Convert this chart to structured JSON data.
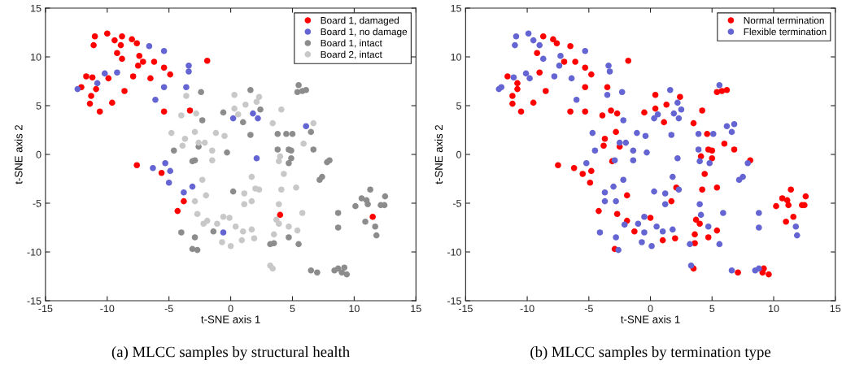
{
  "chart_data": [
    {
      "type": "scatter",
      "title": "(a) MLCC samples by structural health",
      "xlabel": "t-SNE axis 1",
      "ylabel": "t-SNE axis 2",
      "xlim": [
        -15,
        15
      ],
      "ylim": [
        -15,
        15
      ],
      "xticks": [
        -15,
        -10,
        -5,
        0,
        5,
        10,
        15
      ],
      "yticks": [
        -15,
        -10,
        -5,
        0,
        5,
        10,
        15
      ],
      "grid": false,
      "legend": "top right",
      "marker": "circle",
      "series": [
        {
          "name": "Board 1, damaged",
          "color": "#ff0000",
          "x": [
            -11.0,
            -10.0,
            -11.1,
            -9.4,
            -8.8,
            -8.9,
            -8.0,
            -7.6,
            -9.2,
            -8.8,
            -7.4,
            -7.1,
            -6.2,
            -7.5,
            -5.4,
            -4.9,
            -1.9,
            -11.7,
            -11.2,
            -9.9,
            -7.9,
            -6.5,
            -12.1,
            -10.9,
            -8.6,
            -11.3,
            -11.4,
            -9.6,
            -10.6,
            -5.4,
            -3.3,
            -7.6,
            -5.6,
            -3.8,
            -4.3,
            4.0,
            11.5
          ],
          "values": [
            12.1,
            12.4,
            11.2,
            11.7,
            12.1,
            11.2,
            11.8,
            11.4,
            10.4,
            9.8,
            10.1,
            9.5,
            9.5,
            9.1,
            8.9,
            8.2,
            9.6,
            8.0,
            7.9,
            7.8,
            8.0,
            7.8,
            6.9,
            6.7,
            6.5,
            6.0,
            5.2,
            5.3,
            4.4,
            4.4,
            4.5,
            -1.1,
            -1.9,
            -4.8,
            -5.8,
            -6.2,
            -6.4
          ]
        },
        {
          "name": "Board 1, no damage",
          "color": "#6464d2",
          "x": [
            -6.6,
            -5.4,
            -3.4,
            -3.4,
            -10.2,
            -9.2,
            -10.8,
            -12.4,
            -5.4,
            -3.6,
            -6.1,
            0.2,
            -6.3,
            -5.3,
            -4.9,
            -5.0,
            -3.1,
            -3.8,
            -0.6,
            1.8,
            2.2,
            6.1,
            2.1
          ],
          "values": [
            11.1,
            10.6,
            9.1,
            8.5,
            8.3,
            8.4,
            7.3,
            6.7,
            6.9,
            6.9,
            5.6,
            3.7,
            -1.4,
            -0.9,
            -1.7,
            -2.9,
            -3.3,
            -3.9,
            -8.0,
            4.2,
            3.7,
            2.9,
            -0.4
          ]
        },
        {
          "name": "Board 1, intact",
          "color": "#8c8c8c",
          "x": [
            -2.4,
            -0.6,
            -2.3,
            -4.6,
            -2.6,
            -0.3,
            -3.1,
            -2.9,
            0.2,
            -4.0,
            -2.9,
            -3.1,
            -2.7,
            -1.4,
            1.6,
            2.4,
            1.0,
            1.6,
            5.5,
            5.4,
            5.8,
            6.1,
            6.5,
            3.8,
            4.5,
            5.0,
            3.8,
            4.7,
            4.9,
            6.7,
            4.9,
            4.7,
            7.8,
            8.0,
            7.2,
            7.4,
            11.3,
            10.6,
            11.0,
            11.1,
            12.5,
            10.1,
            12.15,
            12.45,
            8.7,
            8.7,
            10.9,
            11.7,
            11.8,
            4.7,
            3.2,
            3.5,
            5.5,
            6.5,
            7.0,
            8.4,
            8.7,
            9.2,
            9.0,
            9.4
          ],
          "values": [
            6.4,
            4.3,
            3.5,
            0.4,
            0.8,
            0.2,
            -0.7,
            -0.6,
            -3.8,
            -8.0,
            -8.5,
            -9.7,
            -9.8,
            -7.9,
            6.6,
            4.6,
            3.3,
            2.0,
            7.1,
            6.4,
            6.5,
            6.6,
            2.3,
            2.1,
            2.1,
            2.1,
            0.5,
            0.5,
            0.4,
            0.5,
            -0.4,
            -0.9,
            -0.8,
            -0.6,
            -2.6,
            -2.3,
            -3.6,
            -4.5,
            -4.7,
            -5.1,
            -4.3,
            -5.3,
            -5.2,
            -5.2,
            -6.0,
            -7.5,
            -6.9,
            -7.4,
            -8.3,
            -8.5,
            -9.2,
            -9.1,
            -9.2,
            -11.9,
            -12.1,
            -11.9,
            -11.7,
            -11.6,
            -12.1,
            -12.3
          ]
        },
        {
          "name": "Board 2, intact",
          "color": "#c8c8c8",
          "x": [
            -3.6,
            0.3,
            0.3,
            0.6,
            -2.8,
            -4.0,
            -4.8,
            -3.7,
            -2.9,
            -1.2,
            -0.5,
            -3.9,
            -2.6,
            -2.1,
            -1.5,
            -1.5,
            -2.3,
            -2.0,
            -2.9,
            -2.7,
            -1.9,
            -2.2,
            -1.1,
            -0.6,
            -0.1,
            0.4,
            -0.7,
            0.0,
            2.3,
            2.1,
            1.2,
            4.1,
            3.4,
            6.7,
            5.9,
            4.0,
            3.9,
            4.3,
            1.7,
            1.1,
            2.0,
            2.3,
            4.1,
            5.3,
            1.1,
            1.7,
            3.9,
            5.8,
            3.7,
            3.9,
            4.7,
            5.4,
            1.0,
            1.7,
            1.9,
            0.9,
            3.5,
            3.2,
            3.4
          ],
          "values": [
            6.0,
            6.1,
            4.7,
            4.1,
            4.2,
            4.0,
            2.2,
            1.6,
            2.3,
            2.2,
            1.9,
            0.9,
            1.2,
            1.2,
            0.4,
            -0.6,
            -2.6,
            -4.2,
            -4.8,
            -6.1,
            -6.8,
            -7.1,
            -7.1,
            -6.4,
            -6.5,
            -7.4,
            -9.0,
            -9.4,
            5.9,
            5.4,
            5.1,
            4.6,
            3.2,
            3.2,
            1.1,
            -0.2,
            -0.7,
            -2.0,
            -2.3,
            -4.0,
            -3.5,
            -3.6,
            -3.6,
            -3.4,
            -5.1,
            -4.8,
            -5.1,
            -6.0,
            -6.7,
            -7.1,
            -7.4,
            -7.8,
            -7.9,
            -7.7,
            -8.6,
            -8.8,
            -8.2,
            -11.4,
            -11.7
          ]
        }
      ]
    },
    {
      "type": "scatter",
      "title": "(b) MLCC samples by termination type",
      "xlabel": "t-SNE axis 1",
      "ylabel": "t-SNE axis 2",
      "xlim": [
        -15,
        15
      ],
      "ylim": [
        -15,
        15
      ],
      "xticks": [
        -15,
        -10,
        -5,
        0,
        5,
        10,
        15
      ],
      "yticks": [
        -15,
        -10,
        -5,
        0,
        5,
        10,
        15
      ],
      "grid": false,
      "legend": "top right",
      "marker": "circle",
      "series": [
        {
          "name": "Normal termination",
          "color": "#ff0000",
          "x": [
            -8.7,
            -7.9,
            -7.6,
            -6.5,
            -9.2,
            -7.0,
            -6.1,
            -5.3,
            -4.8,
            -1.8,
            -11.6,
            -9.0,
            -10.8,
            -10.8,
            -5.3,
            -3.5,
            -8.5,
            -11.2,
            -11.2,
            -9.5,
            -10.5,
            -6.5,
            -5.3,
            -3.9,
            -3.2,
            -2.7,
            -0.5,
            0.4,
            0.4,
            -2.8,
            -3.7,
            -3.8,
            -2.5,
            -3.1,
            -7.5,
            -6.2,
            -5.5,
            -4.8,
            -4.9,
            -1.9,
            -4.2,
            -2.7,
            -1.9,
            0.0,
            -1.3,
            -2.9,
            2.4,
            1.3,
            1.1,
            4.2,
            3.5,
            4.6,
            5.4,
            5.8,
            6.2,
            6.0,
            6.8,
            4.7,
            5.0,
            4.1,
            5.0,
            8.1,
            4.4,
            2.1,
            4.2,
            5.4,
            1.7,
            11.4,
            10.7,
            11.1,
            11.2,
            12.6,
            10.2,
            12.3,
            12.5,
            11.6,
            11.0,
            3.7,
            4.0,
            1.0,
            2.0,
            3.6,
            3.6,
            5.4,
            4.7,
            3.5,
            7.1,
            9.2,
            9.1,
            9.6
          ],
          "values": [
            12.1,
            11.8,
            11.4,
            11.1,
            10.4,
            9.5,
            9.5,
            8.9,
            8.2,
            9.6,
            8.0,
            8.4,
            7.3,
            6.7,
            6.9,
            6.9,
            6.5,
            6.0,
            5.2,
            5.3,
            4.4,
            4.4,
            4.4,
            4.0,
            4.5,
            4.2,
            4.3,
            6.1,
            4.7,
            2.3,
            1.6,
            0.9,
            0.8,
            -0.7,
            -1.1,
            -1.4,
            -2.0,
            -1.7,
            -2.9,
            -4.2,
            -5.8,
            -6.1,
            -6.8,
            -6.5,
            -7.9,
            -9.7,
            5.9,
            5.1,
            3.3,
            4.5,
            3.2,
            2.1,
            6.4,
            6.5,
            6.6,
            1.1,
            0.5,
            0.5,
            0.4,
            -0.2,
            -0.4,
            -0.6,
            -2.0,
            -3.4,
            -3.6,
            -3.4,
            -4.8,
            -3.6,
            -4.5,
            -4.7,
            -5.2,
            -4.3,
            -5.3,
            -5.2,
            -5.2,
            -6.4,
            -6.9,
            -6.7,
            -7.1,
            -8.8,
            -8.6,
            -8.2,
            -9.1,
            -7.8,
            -8.5,
            -11.7,
            -12.1,
            -11.7,
            -12.1,
            -12.3
          ]
        },
        {
          "name": "Flexible termination",
          "color": "#6464d2",
          "x": [
            -10.9,
            -9.9,
            -11.0,
            -9.5,
            -9.0,
            -5.3,
            -8.7,
            -7.3,
            -7.4,
            -3.4,
            -3.3,
            -10.1,
            -11.1,
            -9.8,
            -7.8,
            -6.4,
            -12.3,
            -12.1,
            -6.0,
            -3.5,
            -2.3,
            -2.2,
            0.3,
            0.6,
            -4.7,
            -2.5,
            -2.0,
            -1.1,
            -0.4,
            -1.4,
            -0.3,
            -4.5,
            -2.9,
            -1.4,
            -5.2,
            -2.2,
            -3.0,
            -3.7,
            -3.7,
            -2.8,
            0.3,
            -0.5,
            -1.0,
            -2.1,
            0.5,
            -4.1,
            -2.8,
            -0.5,
            -0.7,
            0.1,
            -2.6,
            1.6,
            2.2,
            2.5,
            1.9,
            2.3,
            5.6,
            6.2,
            6.8,
            6.6,
            1.7,
            3.9,
            5.1,
            3.9,
            4.0,
            4.8,
            2.2,
            7.9,
            7.5,
            7.2,
            1.8,
            2.3,
            1.2,
            1.2,
            4.0,
            5.9,
            4.1,
            4.7,
            8.8,
            8.8,
            11.8,
            11.9,
            1.0,
            1.8,
            3.2,
            5.6,
            3.3,
            6.6,
            8.5,
            8.8
          ],
          "values": [
            12.1,
            12.4,
            11.2,
            11.7,
            11.2,
            10.6,
            9.8,
            10.1,
            9.1,
            9.1,
            8.5,
            8.3,
            7.9,
            7.8,
            8.0,
            7.8,
            6.7,
            6.9,
            5.6,
            6.1,
            6.4,
            3.5,
            3.7,
            4.1,
            2.2,
            1.2,
            1.2,
            2.2,
            1.9,
            0.4,
            0.2,
            0.4,
            -0.6,
            -0.6,
            -0.9,
            -2.6,
            -3.3,
            -3.9,
            -4.8,
            -4.8,
            -3.8,
            -6.4,
            -7.1,
            -7.2,
            -7.4,
            -8.0,
            -8.5,
            -8.0,
            -9.0,
            -9.4,
            -9.8,
            6.6,
            5.3,
            4.6,
            4.2,
            3.7,
            7.1,
            2.9,
            3.1,
            2.3,
            2.0,
            2.1,
            2.1,
            0.5,
            -0.7,
            -0.9,
            -0.4,
            -0.9,
            -2.3,
            -2.6,
            -2.3,
            -3.6,
            -4.0,
            -5.1,
            -5.1,
            -6.0,
            -6.2,
            -7.4,
            -6.0,
            -7.5,
            -7.4,
            -8.3,
            -7.9,
            -7.7,
            -9.2,
            -9.2,
            -11.4,
            -11.9,
            -11.9,
            -11.7
          ]
        }
      ]
    }
  ]
}
